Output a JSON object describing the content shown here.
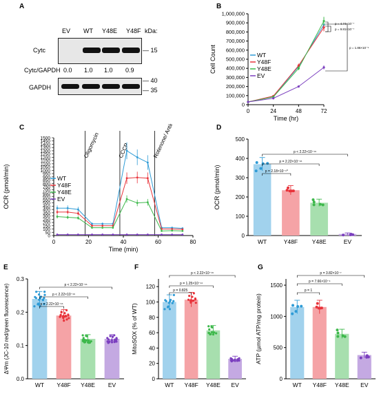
{
  "panel_labels": {
    "A": "A",
    "B": "B",
    "C": "C",
    "D": "D",
    "E": "E",
    "F": "F",
    "G": "G"
  },
  "blot": {
    "lanes": [
      "EV",
      "WT",
      "Y48E",
      "Y48F"
    ],
    "kda_label": "kDa:",
    "cytc_label": "Cytc",
    "ratio_label": "Cytc/GAPDH",
    "ratios": [
      "0.0",
      "1.0",
      "1.0",
      "0.9"
    ],
    "gapdh_label": "GAPDH",
    "markers_top": [
      "15"
    ],
    "markers_bottom": [
      "40",
      "35"
    ]
  },
  "colors": {
    "WT": "#2e9bd6",
    "Y48F": "#e8333a",
    "Y48E": "#3cb84a",
    "EV": "#7b3fbf"
  },
  "chart_data": [
    {
      "id": "B",
      "type": "line",
      "xlabel": "Time (hr)",
      "ylabel": "Cell Count",
      "x": [
        0,
        24,
        48,
        72
      ],
      "xticks": [
        0,
        24,
        48,
        72
      ],
      "yticks": [
        "0",
        "100,000",
        "200,000",
        "300,000",
        "400,000",
        "500,000",
        "600,000",
        "700,000",
        "800,000",
        "900,000",
        "1,000,000"
      ],
      "ylim": [
        0,
        1000000
      ],
      "legend": [
        "WT",
        "Y48F",
        "Y48E",
        "EV"
      ],
      "series": [
        {
          "name": "WT",
          "values": [
            30000,
            90000,
            420000,
            880000
          ]
        },
        {
          "name": "Y48F",
          "values": [
            30000,
            95000,
            430000,
            850000
          ]
        },
        {
          "name": "Y48E",
          "values": [
            30000,
            85000,
            400000,
            920000
          ]
        },
        {
          "name": "EV",
          "values": [
            30000,
            70000,
            200000,
            410000
          ]
        }
      ],
      "pvalues": [
        "p = 4.74×10⁻⁷",
        "p = 9.81×10⁻⁷",
        "p = 1.86×10⁻⁹"
      ]
    },
    {
      "id": "C",
      "type": "line",
      "xlabel": "Time (min)",
      "ylabel": "OCR (pmol/min)",
      "xticks": [
        0,
        20,
        40,
        60,
        80
      ],
      "yticks": [
        0,
        50,
        100,
        150,
        200,
        250,
        300,
        350,
        400,
        450,
        500,
        550,
        600,
        650,
        700,
        750,
        800,
        850,
        900,
        950,
        1000,
        1050,
        1100,
        1150,
        1200,
        1250,
        1300,
        1350,
        1400,
        1450,
        1500
      ],
      "ylim": [
        0,
        1500
      ],
      "injections": [
        "Oligomycin",
        "CCCP",
        "Rotenone/ Antimycin A"
      ],
      "legend": [
        "WT",
        "Y48F",
        "Y48E",
        "EV"
      ],
      "x": [
        2,
        8,
        14,
        22,
        28,
        34,
        42,
        48,
        54,
        62,
        68,
        74
      ],
      "series": [
        {
          "name": "WT",
          "values": [
            420,
            420,
            400,
            180,
            180,
            180,
            1300,
            1200,
            1120,
            120,
            120,
            110
          ]
        },
        {
          "name": "Y48F",
          "values": [
            360,
            360,
            340,
            150,
            150,
            150,
            880,
            890,
            880,
            100,
            100,
            95
          ]
        },
        {
          "name": "Y48E",
          "values": [
            290,
            280,
            270,
            120,
            120,
            120,
            560,
            500,
            510,
            70,
            75,
            70
          ]
        },
        {
          "name": "EV",
          "values": [
            15,
            15,
            15,
            15,
            15,
            15,
            15,
            15,
            15,
            15,
            15,
            15
          ]
        }
      ]
    },
    {
      "id": "D",
      "type": "bar",
      "ylabel": "OCR (pmol/min)",
      "categories": [
        "WT",
        "Y48F",
        "Y48E",
        "EV"
      ],
      "values": [
        370,
        235,
        170,
        8
      ],
      "yticks": [
        0,
        100,
        200,
        300,
        400,
        500
      ],
      "ylim": [
        0,
        500
      ],
      "pvalues": [
        "p = 2.18×10⁻¹⁰",
        "p = 2.22×10⁻¹⁶",
        "p < 2.22×10⁻¹⁶"
      ]
    },
    {
      "id": "E",
      "type": "bar",
      "ylabel": "ΔΨm (JC-10 red/green fluorescence)",
      "categories": [
        "WT",
        "Y48F",
        "Y48E",
        "EV"
      ],
      "values": [
        0.24,
        0.19,
        0.12,
        0.12
      ],
      "yticks": [
        "0.0",
        "0.1",
        "0.2",
        "0.3"
      ],
      "ylim": [
        0,
        0.3
      ],
      "pvalues": [
        "p = 2.22×10⁻¹⁶",
        "p < 2.22×10⁻¹⁶",
        "p < 2.22×10⁻¹⁶"
      ]
    },
    {
      "id": "F",
      "type": "bar",
      "ylabel": "MitoSOX (% of WT)",
      "categories": [
        "WT",
        "Y48F",
        "Y48E",
        "EV"
      ],
      "values": [
        100,
        103,
        63,
        26
      ],
      "yticks": [
        0,
        20,
        40,
        60,
        80,
        100,
        120
      ],
      "ylim": [
        0,
        130
      ],
      "pvalues": [
        "p = 0.825",
        "p = 1.25×10⁻¹⁴",
        "p < 2.22×10⁻¹⁶"
      ]
    },
    {
      "id": "G",
      "type": "bar",
      "ylabel": "ATP (µmol ATP/mg protein)",
      "categories": [
        "WT",
        "Y48F",
        "Y48E",
        "EV"
      ],
      "values": [
        1150,
        1150,
        720,
        380
      ],
      "yticks": [
        0,
        500,
        1000,
        1500
      ],
      "ylim": [
        0,
        1600
      ],
      "pvalues": [
        "p = 1",
        "p = 7.66×10⁻⁴",
        "p = 3.82×10⁻⁷"
      ]
    }
  ]
}
